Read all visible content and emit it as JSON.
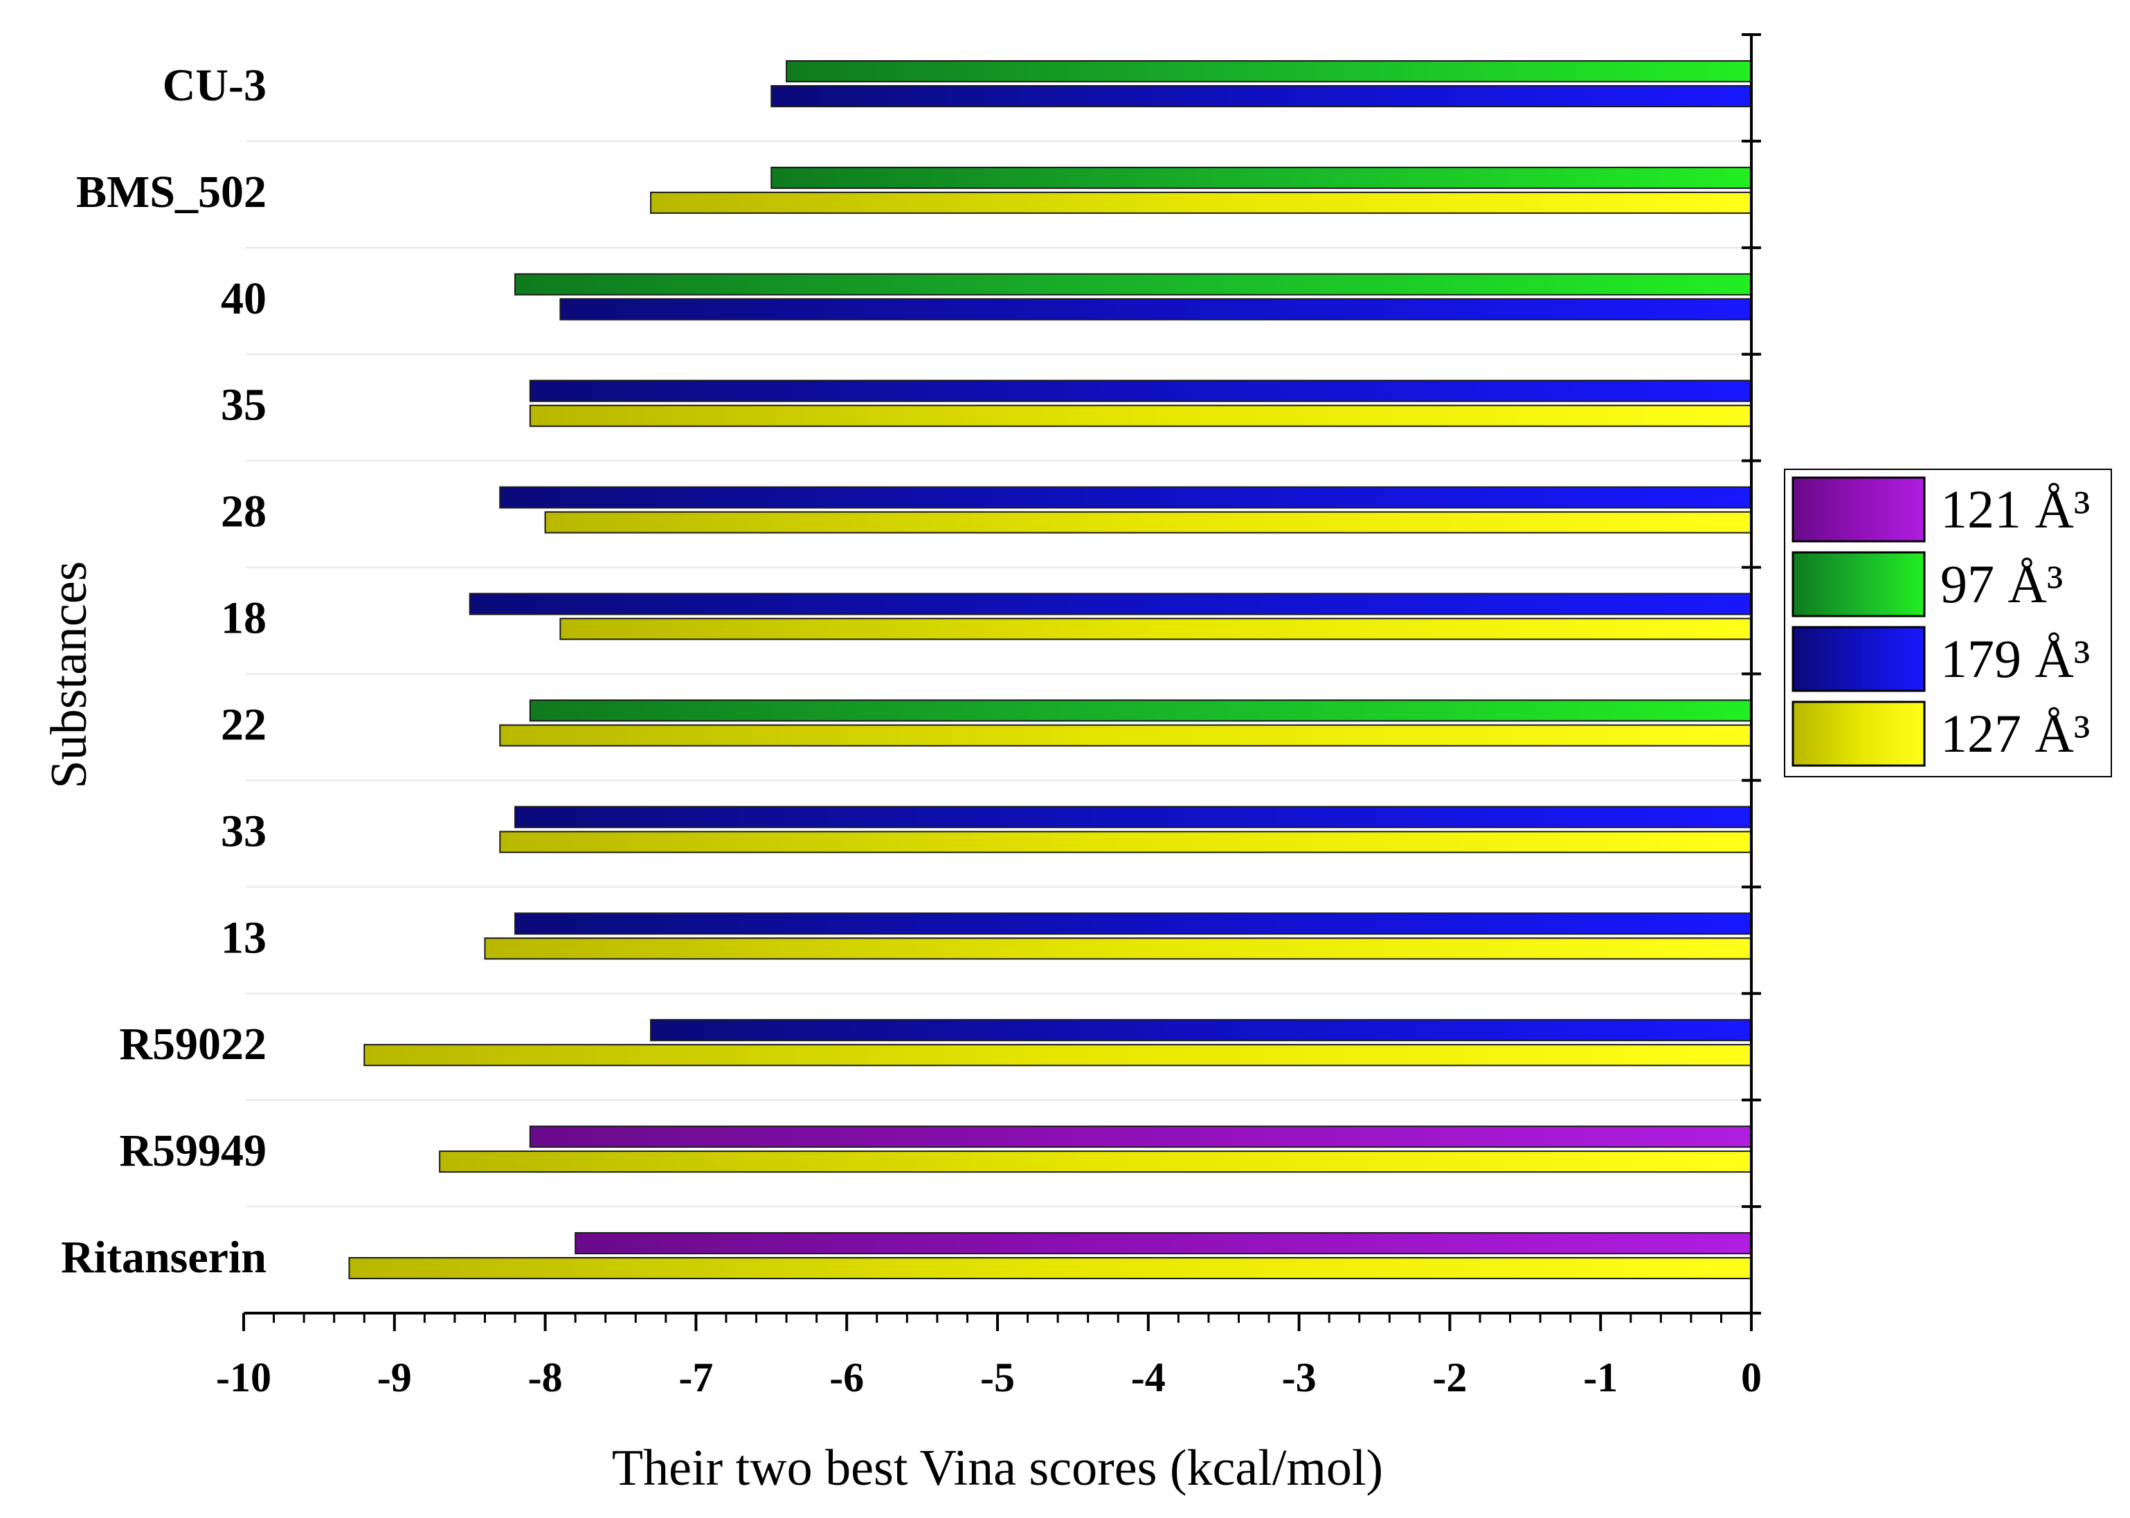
{
  "chart_data": {
    "type": "bar",
    "orientation": "horizontal",
    "xlabel": "Their two best Vina scores (kcal/mol)",
    "ylabel": "Substances",
    "xlim": [
      -10,
      0
    ],
    "xticks": [
      "-10",
      "-9",
      "-8",
      "-7",
      "-6",
      "-5",
      "-4",
      "-3",
      "-2",
      "-1",
      "0"
    ],
    "legend_position": "right",
    "legend": [
      {
        "label": "121 Å³",
        "color": "#9b14c8"
      },
      {
        "label": "97  Å³",
        "color": "#19c219"
      },
      {
        "label": "179 Å³",
        "color": "#1212d8"
      },
      {
        "label": "127 Å³",
        "color": "#f0f000"
      }
    ],
    "categories": [
      {
        "name": "CU-3",
        "bars": [
          {
            "series": "97  Å³",
            "value": -6.4
          },
          {
            "series": "179 Å³",
            "value": -6.5
          }
        ]
      },
      {
        "name": "BMS_502",
        "bars": [
          {
            "series": "97  Å³",
            "value": -6.5
          },
          {
            "series": "127 Å³",
            "value": -7.3
          }
        ]
      },
      {
        "name": "40",
        "bars": [
          {
            "series": "97  Å³",
            "value": -8.2
          },
          {
            "series": "179 Å³",
            "value": -7.9
          }
        ]
      },
      {
        "name": "35",
        "bars": [
          {
            "series": "179 Å³",
            "value": -8.1
          },
          {
            "series": "127 Å³",
            "value": -8.1
          }
        ]
      },
      {
        "name": "28",
        "bars": [
          {
            "series": "179 Å³",
            "value": -8.3
          },
          {
            "series": "127 Å³",
            "value": -8.0
          }
        ]
      },
      {
        "name": "18",
        "bars": [
          {
            "series": "179 Å³",
            "value": -8.5
          },
          {
            "series": "127 Å³",
            "value": -7.9
          }
        ]
      },
      {
        "name": "22",
        "bars": [
          {
            "series": "97  Å³",
            "value": -8.1
          },
          {
            "series": "127 Å³",
            "value": -8.3
          }
        ]
      },
      {
        "name": "33",
        "bars": [
          {
            "series": "179 Å³",
            "value": -8.2
          },
          {
            "series": "127 Å³",
            "value": -8.3
          }
        ]
      },
      {
        "name": "13",
        "bars": [
          {
            "series": "179 Å³",
            "value": -8.2
          },
          {
            "series": "127 Å³",
            "value": -8.4
          }
        ]
      },
      {
        "name": "R59022",
        "bars": [
          {
            "series": "179 Å³",
            "value": -7.3
          },
          {
            "series": "127 Å³",
            "value": -9.2
          }
        ]
      },
      {
        "name": "R59949",
        "bars": [
          {
            "series": "121 Å³",
            "value": -8.1
          },
          {
            "series": "127 Å³",
            "value": -8.7
          }
        ]
      },
      {
        "name": "Ritanserin",
        "bars": [
          {
            "series": "121 Å³",
            "value": -7.8
          },
          {
            "series": "127 Å³",
            "value": -9.3
          }
        ]
      }
    ]
  }
}
